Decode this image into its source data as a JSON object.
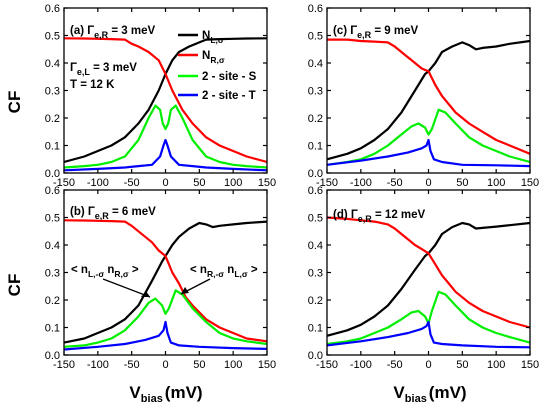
{
  "axis": {
    "ylabel": "CF",
    "xlabel_main": "V",
    "xlabel_sub": "bias",
    "xlabel_unit": "(mV)",
    "xlim": [
      -150,
      150
    ],
    "ylim": [
      0.0,
      0.6
    ],
    "xticks": [
      "-150",
      "-100",
      "-50",
      "0",
      "50",
      "100",
      "150"
    ],
    "yticks": [
      "0.0",
      "0.1",
      "0.2",
      "0.3",
      "0.4",
      "0.5",
      "0.6"
    ]
  },
  "legend": {
    "entries": [
      {
        "main": "N",
        "sub": "L,σ",
        "color": "#000000"
      },
      {
        "main": "N",
        "sub": "R,σ",
        "color": "#ff0000"
      },
      {
        "main": "2 - site - S",
        "sub": "",
        "color": "#00ff00"
      },
      {
        "main": "2 - site - T",
        "sub": "",
        "color": "#0000ff"
      }
    ]
  },
  "colors": {
    "N_L": "#000000",
    "N_R": "#ff0000",
    "S": "#00ee00",
    "T": "#0000ff"
  },
  "panels": [
    {
      "id": "a",
      "labels": [
        {
          "type": "sub",
          "main": "(a) Γ",
          "sub": "e,R",
          "rest": " = 3 meV"
        },
        {
          "type": "sub",
          "main": "Γ",
          "sub": "e,L",
          "rest": " = 3 meV"
        },
        {
          "type": "plain",
          "text": "T = 12 K"
        }
      ]
    },
    {
      "id": "c",
      "labels": [
        {
          "type": "sub",
          "main": "(c) Γ",
          "sub": "e,R",
          "rest": " = 9 meV"
        }
      ]
    },
    {
      "id": "b",
      "labels": [
        {
          "type": "sub",
          "main": "(b) Γ",
          "sub": "e,R",
          "rest": " = 6 meV"
        }
      ],
      "annotations": [
        {
          "parts": [
            "< n",
            "L,-σ",
            " n",
            "R,σ",
            " >"
          ]
        },
        {
          "parts": [
            "< n",
            "R,-σ",
            " n",
            "L,σ",
            " >"
          ]
        }
      ]
    },
    {
      "id": "d",
      "labels": [
        {
          "type": "sub",
          "main": "(d) Γ",
          "sub": "e,R",
          "rest": " = 12 meV"
        }
      ]
    }
  ],
  "chart_data": [
    {
      "type": "line",
      "panel": "a",
      "xlim": [
        -150,
        150
      ],
      "ylim": [
        0,
        0.6
      ],
      "series": [
        {
          "name": "N_{L,σ}",
          "x": [
            -150,
            -120,
            -100,
            -80,
            -60,
            -40,
            -25,
            -10,
            0,
            10,
            20,
            35,
            50,
            60,
            80,
            100,
            120,
            150
          ],
          "y": [
            0.04,
            0.06,
            0.08,
            0.1,
            0.13,
            0.18,
            0.23,
            0.3,
            0.36,
            0.41,
            0.44,
            0.46,
            0.475,
            0.485,
            0.487,
            0.488,
            0.489,
            0.49
          ]
        },
        {
          "name": "N_{R,σ}",
          "x": [
            -150,
            -120,
            -100,
            -80,
            -60,
            -50,
            -40,
            -25,
            -10,
            0,
            10,
            25,
            40,
            60,
            80,
            100,
            120,
            150
          ],
          "y": [
            0.49,
            0.489,
            0.488,
            0.487,
            0.485,
            0.47,
            0.46,
            0.44,
            0.41,
            0.36,
            0.3,
            0.23,
            0.18,
            0.13,
            0.1,
            0.08,
            0.06,
            0.04
          ]
        },
        {
          "name": "2 - site - S",
          "x": [
            -150,
            -120,
            -100,
            -80,
            -60,
            -40,
            -25,
            -15,
            -8,
            -4,
            0,
            4,
            8,
            15,
            25,
            40,
            60,
            80,
            100,
            120,
            150
          ],
          "y": [
            0.02,
            0.025,
            0.03,
            0.04,
            0.06,
            0.12,
            0.2,
            0.245,
            0.23,
            0.18,
            0.16,
            0.18,
            0.23,
            0.245,
            0.2,
            0.12,
            0.06,
            0.04,
            0.03,
            0.025,
            0.02
          ]
        },
        {
          "name": "2 - site - T",
          "x": [
            -150,
            -100,
            -60,
            -40,
            -20,
            -8,
            -3,
            0,
            3,
            8,
            20,
            40,
            60,
            100,
            150
          ],
          "y": [
            0.01,
            0.015,
            0.02,
            0.025,
            0.03,
            0.06,
            0.1,
            0.12,
            0.1,
            0.06,
            0.03,
            0.025,
            0.02,
            0.015,
            0.01
          ]
        }
      ]
    },
    {
      "type": "line",
      "panel": "c",
      "xlim": [
        -150,
        150
      ],
      "ylim": [
        0,
        0.6
      ],
      "series": [
        {
          "name": "N_{L,σ}",
          "x": [
            -150,
            -120,
            -100,
            -80,
            -60,
            -40,
            -20,
            -5,
            0,
            10,
            20,
            35,
            50,
            60,
            70,
            80,
            100,
            120,
            150
          ],
          "y": [
            0.05,
            0.07,
            0.09,
            0.12,
            0.16,
            0.22,
            0.3,
            0.36,
            0.37,
            0.4,
            0.44,
            0.46,
            0.475,
            0.465,
            0.45,
            0.455,
            0.46,
            0.47,
            0.48
          ]
        },
        {
          "name": "N_{R,σ}",
          "x": [
            -150,
            -120,
            -100,
            -80,
            -60,
            -50,
            -40,
            -30,
            -20,
            -10,
            0,
            10,
            20,
            40,
            60,
            80,
            100,
            120,
            150
          ],
          "y": [
            0.485,
            0.485,
            0.48,
            0.478,
            0.475,
            0.46,
            0.44,
            0.42,
            0.4,
            0.38,
            0.37,
            0.32,
            0.28,
            0.22,
            0.18,
            0.15,
            0.12,
            0.1,
            0.07
          ]
        },
        {
          "name": "2 - site - S",
          "x": [
            -150,
            -120,
            -100,
            -80,
            -60,
            -40,
            -25,
            -15,
            -5,
            0,
            5,
            15,
            25,
            40,
            60,
            80,
            100,
            120,
            150
          ],
          "y": [
            0.03,
            0.04,
            0.05,
            0.07,
            0.1,
            0.14,
            0.17,
            0.18,
            0.165,
            0.14,
            0.16,
            0.23,
            0.22,
            0.18,
            0.13,
            0.1,
            0.08,
            0.06,
            0.04
          ]
        },
        {
          "name": "2 - site - T",
          "x": [
            -150,
            -100,
            -60,
            -30,
            -10,
            -3,
            0,
            3,
            8,
            20,
            50,
            100,
            150
          ],
          "y": [
            0.03,
            0.045,
            0.06,
            0.075,
            0.09,
            0.1,
            0.12,
            0.08,
            0.05,
            0.04,
            0.03,
            0.028,
            0.025
          ]
        }
      ]
    },
    {
      "type": "line",
      "panel": "b",
      "xlim": [
        -150,
        150
      ],
      "ylim": [
        0,
        0.6
      ],
      "series": [
        {
          "name": "N_{L,σ}",
          "x": [
            -150,
            -120,
            -100,
            -80,
            -60,
            -40,
            -20,
            -5,
            0,
            10,
            20,
            35,
            50,
            60,
            70,
            80,
            100,
            120,
            150
          ],
          "y": [
            0.045,
            0.06,
            0.08,
            0.1,
            0.13,
            0.18,
            0.27,
            0.34,
            0.36,
            0.4,
            0.43,
            0.46,
            0.48,
            0.475,
            0.465,
            0.47,
            0.475,
            0.48,
            0.485
          ]
        },
        {
          "name": "N_{R,σ}",
          "x": [
            -150,
            -120,
            -100,
            -80,
            -60,
            -50,
            -40,
            -30,
            -20,
            -10,
            0,
            10,
            20,
            30,
            40,
            60,
            80,
            100,
            120,
            150
          ],
          "y": [
            0.49,
            0.489,
            0.488,
            0.487,
            0.485,
            0.47,
            0.45,
            0.43,
            0.41,
            0.38,
            0.36,
            0.3,
            0.26,
            0.21,
            0.18,
            0.13,
            0.1,
            0.08,
            0.06,
            0.05
          ]
        },
        {
          "name": "2 - site - S",
          "x": [
            -150,
            -120,
            -100,
            -80,
            -60,
            -40,
            -25,
            -15,
            -5,
            0,
            5,
            15,
            25,
            40,
            60,
            80,
            100,
            120,
            150
          ],
          "y": [
            0.03,
            0.035,
            0.045,
            0.06,
            0.09,
            0.14,
            0.19,
            0.205,
            0.18,
            0.15,
            0.17,
            0.235,
            0.22,
            0.17,
            0.12,
            0.08,
            0.06,
            0.05,
            0.04
          ]
        },
        {
          "name": "2 - site - T",
          "x": [
            -150,
            -100,
            -60,
            -30,
            -10,
            -3,
            0,
            3,
            8,
            20,
            50,
            100,
            150
          ],
          "y": [
            0.02,
            0.03,
            0.04,
            0.055,
            0.07,
            0.09,
            0.12,
            0.08,
            0.045,
            0.035,
            0.03,
            0.025,
            0.022
          ]
        }
      ]
    },
    {
      "type": "line",
      "panel": "d",
      "xlim": [
        -150,
        150
      ],
      "ylim": [
        0,
        0.6
      ],
      "series": [
        {
          "name": "N_{L,σ}",
          "x": [
            -150,
            -120,
            -100,
            -80,
            -60,
            -40,
            -20,
            -5,
            0,
            10,
            20,
            35,
            50,
            60,
            70,
            80,
            100,
            120,
            150
          ],
          "y": [
            0.07,
            0.09,
            0.11,
            0.14,
            0.18,
            0.24,
            0.31,
            0.36,
            0.37,
            0.4,
            0.44,
            0.465,
            0.48,
            0.475,
            0.46,
            0.462,
            0.467,
            0.472,
            0.48
          ]
        },
        {
          "name": "N_{R,σ}",
          "x": [
            -150,
            -120,
            -100,
            -80,
            -60,
            -50,
            -40,
            -30,
            -20,
            -10,
            0,
            10,
            20,
            30,
            40,
            60,
            80,
            100,
            120,
            150
          ],
          "y": [
            0.5,
            0.495,
            0.49,
            0.485,
            0.475,
            0.46,
            0.44,
            0.42,
            0.4,
            0.385,
            0.37,
            0.33,
            0.29,
            0.26,
            0.23,
            0.19,
            0.16,
            0.14,
            0.12,
            0.1
          ]
        },
        {
          "name": "2 - site - S",
          "x": [
            -150,
            -120,
            -100,
            -80,
            -60,
            -40,
            -25,
            -15,
            -5,
            0,
            5,
            15,
            25,
            40,
            60,
            80,
            100,
            120,
            150
          ],
          "y": [
            0.04,
            0.05,
            0.06,
            0.08,
            0.1,
            0.13,
            0.155,
            0.16,
            0.14,
            0.115,
            0.16,
            0.23,
            0.22,
            0.18,
            0.13,
            0.1,
            0.08,
            0.065,
            0.045
          ]
        },
        {
          "name": "2 - site - T",
          "x": [
            -150,
            -100,
            -60,
            -30,
            -10,
            -3,
            0,
            3,
            8,
            20,
            50,
            100,
            150
          ],
          "y": [
            0.035,
            0.05,
            0.065,
            0.08,
            0.095,
            0.105,
            0.12,
            0.075,
            0.045,
            0.04,
            0.035,
            0.03,
            0.028
          ]
        }
      ]
    }
  ]
}
